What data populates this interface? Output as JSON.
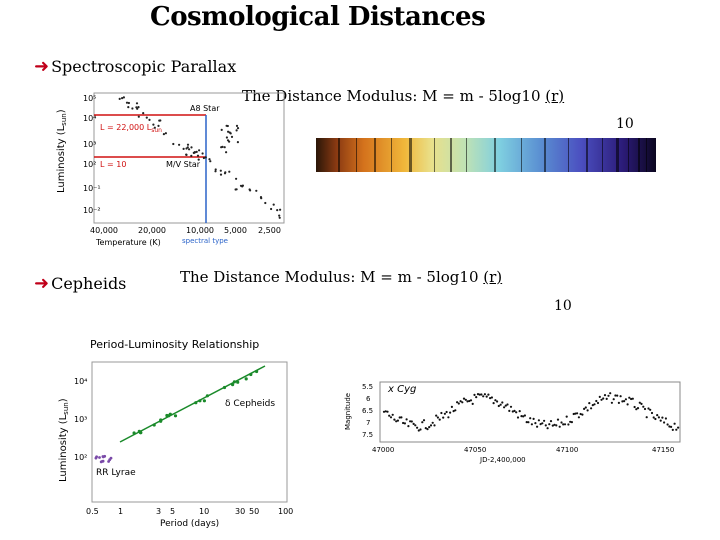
{
  "slide": {
    "title": "Cosmological Distances",
    "spectroscopic": {
      "label": "Spectroscopic  Parallax",
      "formula_prefix": "The Distance Modulus: M = m - 5log10 ",
      "formula_r": "(r)",
      "formula_den": "10"
    },
    "cepheids": {
      "label": "Cepheids",
      "formula_prefix": "The Distance Modulus: M = m - 5log10 ",
      "formula_r": "(r)",
      "formula_den": "10"
    },
    "bullet_icon": "arrow-bullet-icon"
  },
  "hr_diagram": {
    "ylabel": "Luminosity (L",
    "ylabel_sub": "sun",
    "ylabel_end": ")",
    "xlabel": "Temperature (K)",
    "spectral_label": "spectral type",
    "yticks": [
      "10⁵",
      "10⁴",
      "10³",
      "10²",
      "10⁻¹",
      "10⁻²"
    ],
    "xticks": [
      "40,000",
      "20,000",
      "10,000",
      "5,000",
      "2,500"
    ],
    "star_a8": "A8  Star",
    "star_mv": "M/V Star",
    "lum_1": "L = 22,000 L",
    "lum_1_sub": "sun",
    "lum_2": "L = 10",
    "colors": {
      "red": "#d01010",
      "blue": "#2a63c9"
    }
  },
  "pl_diagram": {
    "title": "Period-Luminosity Relationship",
    "ylabel": "Luminosity (L",
    "ylabel_sub": "sun",
    "ylabel_end": ")",
    "xlabel": "Period (days)",
    "yticks": [
      "10⁴",
      "10³",
      "10²"
    ],
    "xticks": [
      "0.5",
      "1",
      "3",
      "5",
      "10",
      "30",
      "50",
      "100"
    ],
    "cepheid_label": "δ Cepheids",
    "rr_label": "RR Lyrae",
    "colors": {
      "green": "#1a8a2a",
      "red": "#c01020",
      "purple": "#7a4aa8"
    }
  },
  "light_curve": {
    "title": "x Cyg",
    "ylabel": "Magnitude",
    "yticks": [
      "5.5",
      "6",
      "6.5",
      "7",
      "7.5"
    ],
    "xticks": [
      "47000",
      "47050",
      "47100",
      "47150"
    ],
    "xlabel": "JD-2,400,000"
  }
}
